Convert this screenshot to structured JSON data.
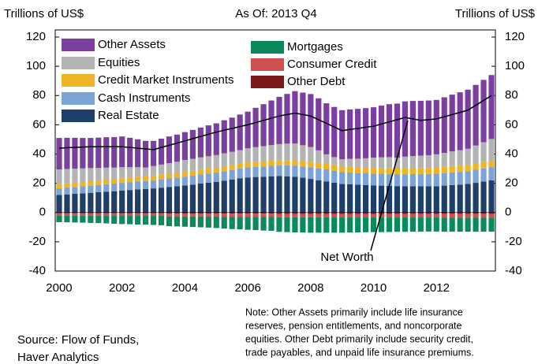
{
  "chart_data": {
    "type": "stacked-bar",
    "title": "As Of: 2013 Q4",
    "ylabel": "Trillions of US$",
    "y2label": "Trillions of US$",
    "categories": [
      "2000",
      null,
      null,
      null,
      null,
      null,
      null,
      null,
      "2002",
      null,
      null,
      null,
      null,
      null,
      null,
      null,
      "2004",
      null,
      null,
      null,
      null,
      null,
      null,
      null,
      "2006",
      null,
      null,
      null,
      null,
      null,
      null,
      null,
      "2008",
      null,
      null,
      null,
      null,
      null,
      null,
      null,
      "2010",
      null,
      null,
      null,
      null,
      null,
      null,
      null,
      "2012",
      null,
      null,
      null,
      null,
      null,
      null,
      null
    ],
    "ylim": [
      -40,
      120
    ],
    "yticks": [
      -40,
      -20,
      0,
      20,
      40,
      60,
      80,
      100,
      120
    ],
    "series": [
      {
        "name": "Other Assets",
        "color": "#7b3fa0",
        "values": [
          21.5,
          21.3,
          21.1,
          20.8,
          20.6,
          20.7,
          20.8,
          20.9,
          21,
          20.1,
          19.1,
          18.2,
          17.2,
          17.7,
          18.2,
          18.6,
          19.1,
          19.8,
          20.4,
          21.1,
          21.7,
          22.6,
          23.4,
          24.3,
          25.1,
          26.9,
          28.7,
          30.5,
          32.3,
          34,
          35.8,
          36,
          36.2,
          35.6,
          34.9,
          34.3,
          33.6,
          33.8,
          34.1,
          34.3,
          34.5,
          35.3,
          36.2,
          37,
          37.8,
          37.7,
          37.5,
          37.4,
          37.2,
          38,
          38.8,
          39.6,
          40.4,
          41.5,
          42.6,
          43.7
        ]
      },
      {
        "name": "Equities",
        "color": "#b3b3b3",
        "values": [
          10,
          9.8,
          9.5,
          9.3,
          9,
          8.6,
          8.3,
          7.9,
          7.5,
          7,
          6.5,
          6,
          6.5,
          6.9,
          7.3,
          7.6,
          8,
          8.1,
          8.3,
          8.4,
          8.5,
          8.8,
          9,
          9.3,
          9.5,
          9.9,
          10.3,
          10.6,
          11,
          11.3,
          11.5,
          10.8,
          10,
          8.5,
          6.5,
          5.5,
          5,
          5.5,
          6,
          6.5,
          7,
          7.3,
          7.5,
          7.2,
          8,
          8.3,
          8.5,
          8.8,
          9,
          9.5,
          10,
          10.5,
          11,
          12.3,
          13.6,
          15
        ]
      },
      {
        "name": "Credit Market Instruments",
        "color": "#f0b323",
        "values": [
          3,
          3,
          3,
          3,
          3,
          3,
          3,
          3,
          3.2,
          3.2,
          3.2,
          3.2,
          3.2,
          3.2,
          3.2,
          3.2,
          3.4,
          3.4,
          3.4,
          3.4,
          3.4,
          3.4,
          3.4,
          3.4,
          3.6,
          3.6,
          3.6,
          3.6,
          3.6,
          3.6,
          3.6,
          3.6,
          3.8,
          3.8,
          3.8,
          3.8,
          3.8,
          3.8,
          3.8,
          3.8,
          4,
          4,
          4,
          4,
          4,
          4,
          4,
          4,
          4.3,
          4.3,
          4.3,
          4.3,
          4.3,
          4.3,
          4.3,
          4.3
        ]
      },
      {
        "name": "Cash Instruments",
        "color": "#7ba3d6",
        "values": [
          4.5,
          4.6,
          4.7,
          4.8,
          4.9,
          5.0,
          5.1,
          5.2,
          5.3,
          5.4,
          5.5,
          5.5,
          5.6,
          5.7,
          5.8,
          5.9,
          6.0,
          6.1,
          6.2,
          6.3,
          6.4,
          6.5,
          6.6,
          6.7,
          6.8,
          6.9,
          7.0,
          7.1,
          7.2,
          7.4,
          7.6,
          7.8,
          8.0,
          8.1,
          8.2,
          8.2,
          8.1,
          8.1,
          8.0,
          8.0,
          8.0,
          8.1,
          8.1,
          8.2,
          8.2,
          8.3,
          8.4,
          8.4,
          8.5,
          8.6,
          8.7,
          8.7,
          8.8,
          8.9,
          9.0,
          9.0
        ]
      },
      {
        "name": "Real Estate",
        "color": "#1f3f6b",
        "values": [
          12,
          12.4,
          12.8,
          13.1,
          13.5,
          13.9,
          14.3,
          14.6,
          15,
          15.4,
          15.8,
          16.1,
          16.5,
          17,
          17.5,
          18,
          18.5,
          19.1,
          19.8,
          20.4,
          21,
          21.8,
          22.5,
          23.3,
          24,
          24.3,
          24.5,
          24.8,
          25,
          24.8,
          24.5,
          23.8,
          23,
          22.1,
          21.3,
          20.4,
          19.5,
          19.3,
          19,
          18.8,
          18.5,
          18.4,
          18.3,
          18.1,
          18,
          18,
          18,
          18,
          18,
          18.4,
          18.8,
          19.1,
          19.5,
          20.3,
          21.2,
          22
        ]
      },
      {
        "name": "Mortgages",
        "color": "#0a8a5a",
        "values": [
          -4.5,
          -4.6,
          -4.7,
          -4.8,
          -5.0,
          -5.1,
          -5.3,
          -5.4,
          -5.6,
          -5.7,
          -5.9,
          -6.0,
          -6.2,
          -6.4,
          -6.6,
          -6.8,
          -7.0,
          -7.2,
          -7.4,
          -7.6,
          -7.9,
          -8.1,
          -8.4,
          -8.6,
          -8.9,
          -9.1,
          -9.4,
          -9.6,
          -9.9,
          -10.1,
          -10.3,
          -10.4,
          -10.5,
          -10.5,
          -10.5,
          -10.4,
          -10.4,
          -10.3,
          -10.2,
          -10.1,
          -10.0,
          -10.0,
          -9.9,
          -9.8,
          -9.8,
          -9.7,
          -9.7,
          -9.6,
          -9.6,
          -9.5,
          -9.5,
          -9.5,
          -9.5,
          -9.5,
          -9.5,
          -9.5
        ]
      },
      {
        "name": "Consumer Credit",
        "color": "#d0504f",
        "values": [
          -1.5,
          -1.5,
          -1.5,
          -1.5,
          -1.5,
          -1.5,
          -1.5,
          -1.7,
          -1.7,
          -1.7,
          -1.7,
          -1.7,
          -1.7,
          -1.7,
          -1.9,
          -1.9,
          -1.9,
          -1.9,
          -1.9,
          -1.9,
          -1.9,
          -2.1,
          -2.1,
          -2.1,
          -2.1,
          -2.1,
          -2.1,
          -2.1,
          -2.3,
          -2.3,
          -2.3,
          -2.3,
          -2.3,
          -2.3,
          -2.3,
          -2.4,
          -2.4,
          -2.4,
          -2.4,
          -2.4,
          -2.4,
          -2.4,
          -2.5,
          -2.5,
          -2.5,
          -2.5,
          -2.5,
          -2.5,
          -2.5,
          -2.7,
          -2.7,
          -2.7,
          -2.7,
          -2.7,
          -2.7,
          -2.7
        ]
      },
      {
        "name": "Other Debt",
        "color": "#7a1a1a",
        "values": [
          -0.6,
          -0.6,
          -0.6,
          -0.6,
          -0.6,
          -0.6,
          -0.6,
          -0.6,
          -0.6,
          -0.6,
          -0.6,
          -0.6,
          -0.6,
          -0.6,
          -0.8,
          -0.8,
          -0.8,
          -0.8,
          -0.8,
          -0.8,
          -0.8,
          -0.8,
          -0.8,
          -0.8,
          -0.8,
          -0.8,
          -0.8,
          -0.8,
          -1.0,
          -1.0,
          -1.0,
          -1.0,
          -1.0,
          -1.0,
          -1.0,
          -1.0,
          -1.0,
          -1.0,
          -1.0,
          -1.0,
          -1.0,
          -1.0,
          -0.9,
          -0.9,
          -0.9,
          -0.9,
          -0.9,
          -0.9,
          -0.9,
          -0.9,
          -0.9,
          -0.9,
          -0.9,
          -0.9,
          -0.9,
          -0.9
        ]
      }
    ],
    "line": {
      "name": "Net Worth",
      "color": "#000000",
      "values": [
        44,
        44.3,
        44.5,
        44.8,
        45,
        45,
        45,
        45,
        45,
        44.5,
        44,
        43.5,
        43,
        44.5,
        46,
        47.5,
        49,
        50.5,
        52,
        53.5,
        55,
        56.3,
        57.5,
        58.8,
        60,
        61.5,
        63,
        64.5,
        66,
        67,
        68,
        67,
        66,
        63.5,
        61,
        58.5,
        56,
        56.8,
        57.5,
        58.3,
        59,
        60.5,
        62,
        63.5,
        65,
        64,
        63,
        63.5,
        64,
        65.5,
        67,
        68.5,
        70,
        73.3,
        76.7,
        80
      ]
    },
    "source": [
      "Source: Flow of Funds,",
      "Haver Analytics"
    ],
    "note": [
      "Note: Other Assets primarily include life insurance",
      "reserves, pension entitlements, and noncorporate",
      "equities.  Other Debt primarily include security credit,",
      "trade payables, and unpaid life insurance premiums."
    ]
  }
}
